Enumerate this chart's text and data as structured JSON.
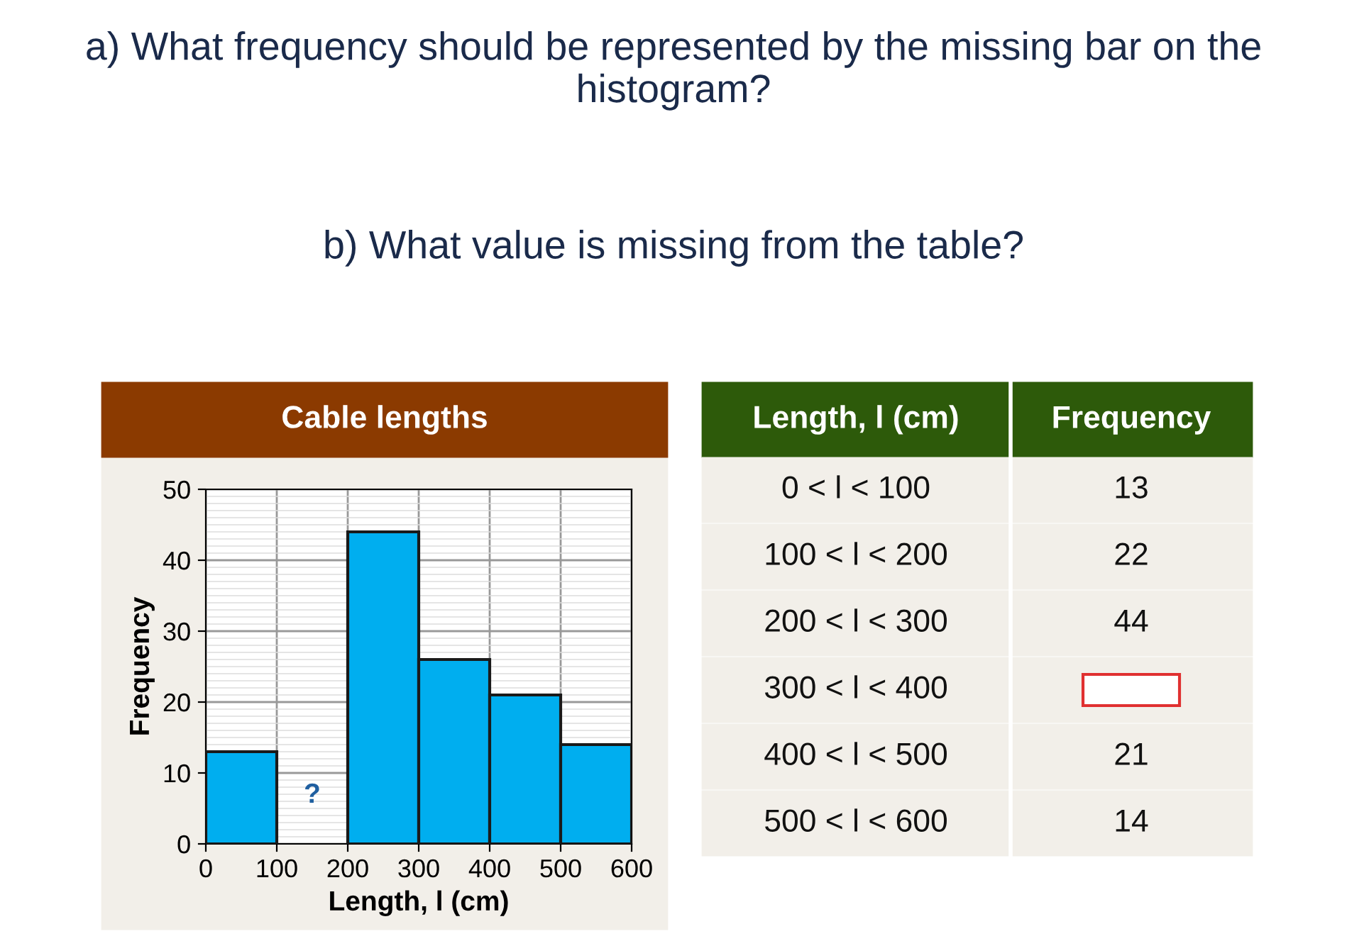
{
  "chart_data": {
    "type": "histogram",
    "title": "Cable lengths",
    "xlabel": "Length, l (cm)",
    "ylabel": "Frequency",
    "bins": [
      0,
      100,
      200,
      300,
      400,
      500,
      600
    ],
    "values": [
      13,
      null,
      44,
      26,
      21,
      14
    ],
    "color": "#00aeef",
    "xlim": [
      0,
      600
    ],
    "xticks": [
      0,
      100,
      200,
      300,
      400,
      500,
      600
    ],
    "ylim": [
      0,
      50
    ],
    "yticks": [
      0,
      10,
      20,
      30,
      40,
      50
    ],
    "grid": true,
    "annotations": [
      "a) What frequency should be represented by the missing bar on the histogram?",
      "b) What value is missing from the table?",
      "?",
      "Length, l (cm)",
      "0 < l < 100",
      "100 < l < 200",
      "200 < l < 300",
      "300 < l < 400",
      "400 < l < 500",
      "500 < l < 600",
      "Frequency",
      "13",
      "22",
      "44",
      "21",
      "14"
    ]
  }
}
